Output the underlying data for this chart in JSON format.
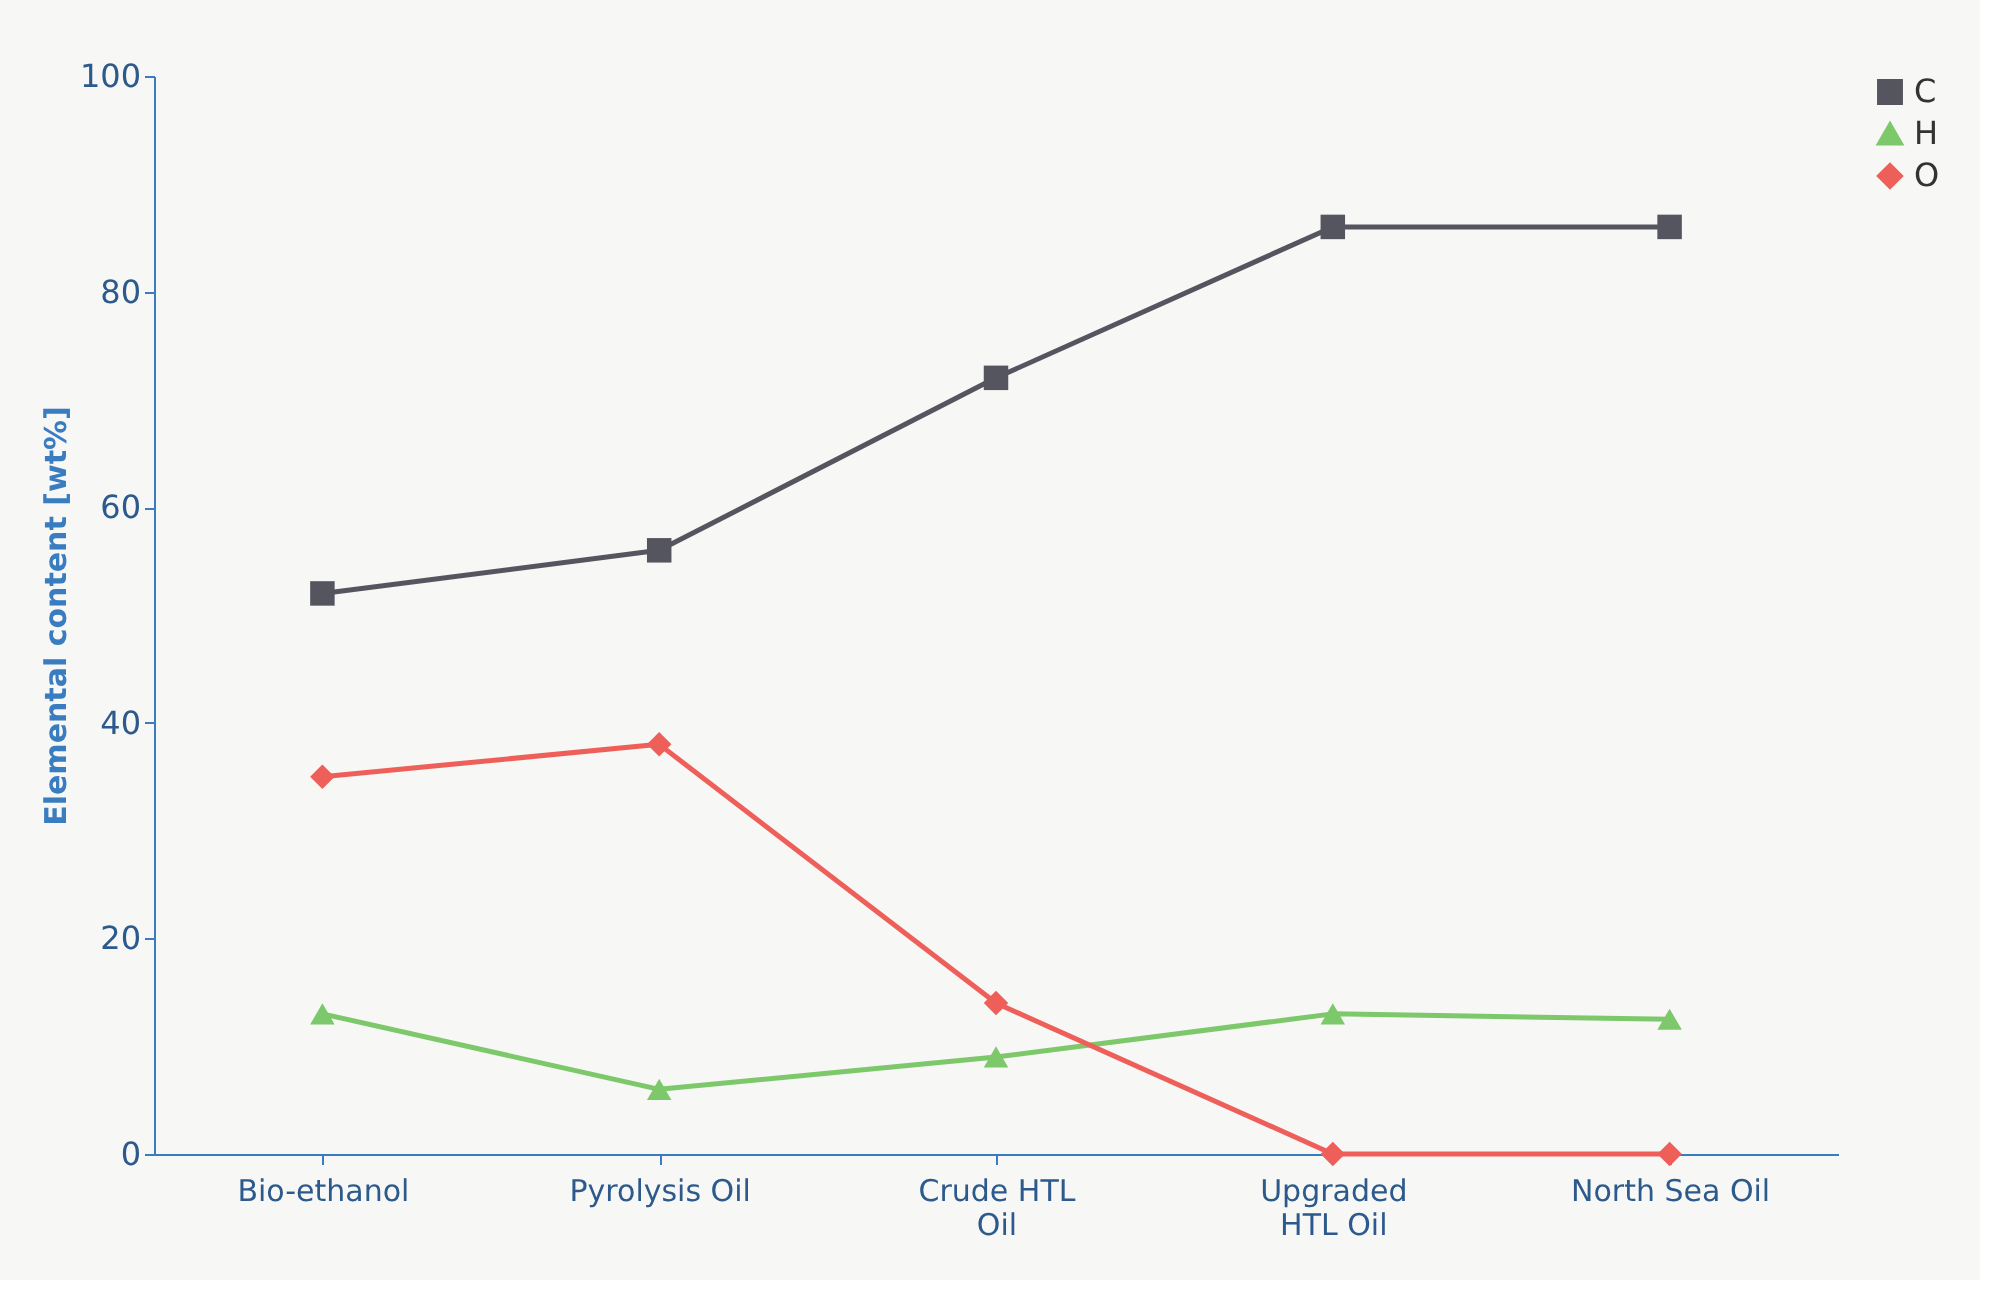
{
  "chart_data": {
    "type": "line",
    "ylabel": "Elemental content [wt%]",
    "categories": [
      "Bio-ethanol",
      "Pyrolysis Oil",
      "Crude HTL\nOil",
      "Upgraded\nHTL Oil",
      "North Sea Oil"
    ],
    "series": [
      {
        "name": "C",
        "color": "#55555f",
        "marker": "square",
        "values": [
          52,
          56,
          72,
          86,
          86
        ]
      },
      {
        "name": "H",
        "color": "#7cc86a",
        "marker": "triangle",
        "values": [
          13,
          6,
          9,
          13,
          12.5
        ]
      },
      {
        "name": "O",
        "color": "#ee5f5a",
        "marker": "diamond",
        "values": [
          35,
          38,
          14,
          0,
          0
        ]
      }
    ],
    "ylim": [
      0,
      100
    ],
    "yticks": [
      0,
      20,
      40,
      60,
      80,
      100
    ],
    "grid": false,
    "legend": "right",
    "line_style": "solid"
  }
}
